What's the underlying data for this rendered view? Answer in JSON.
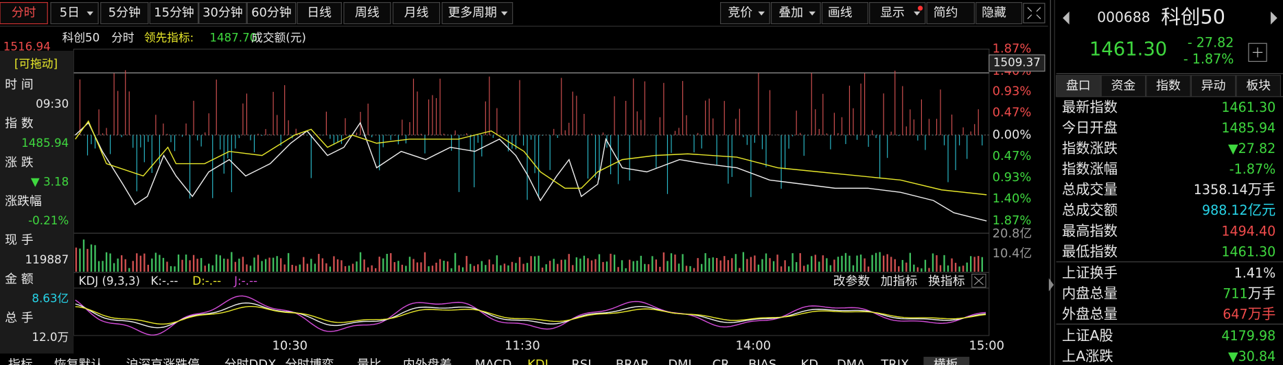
{
  "toolbar": {
    "periods": [
      "分时",
      "5日",
      "5分钟",
      "15分钟",
      "30分钟",
      "60分钟",
      "日线",
      "周线",
      "月线",
      "更多周期"
    ],
    "tools": [
      "竞价",
      "叠加",
      "画线",
      "显示",
      "简约",
      "隐藏"
    ]
  },
  "chart": {
    "name": "科创50",
    "mode": "分时",
    "lead_label": "领先指标:",
    "lead_value": "1487.70",
    "amount_label": "成交额(元)",
    "top_price": "1516.94",
    "pct_axis": [
      "1.87%",
      "1.40%",
      "0.93%",
      "0.47%",
      "0.00%",
      "0.47%",
      "0.93%",
      "1.40%",
      "1.87%"
    ],
    "cursor_value": "1509.37",
    "volume_axis": [
      "20.8亿",
      "10.4亿"
    ],
    "kdj": {
      "title": "KDJ (9,3,3)",
      "k": "K:-.--",
      "d": "D:-.--",
      "j": "J:-.--"
    },
    "indicator_buttons": [
      "改参数",
      "加指标",
      "换指标"
    ],
    "times": [
      "10:30",
      "11:30",
      "14:00",
      "15:00"
    ]
  },
  "info_panel": {
    "drag": "[可拖动]",
    "items": [
      {
        "label": "时 间",
        "value": "09:30"
      },
      {
        "label": "指 数",
        "value": "1485.94"
      },
      {
        "label": "涨 跌",
        "value": "▼ 3.18"
      },
      {
        "label": "涨跌幅",
        "value": "-0.21%"
      },
      {
        "label": "现 手",
        "value": "119887"
      },
      {
        "label": "金 额",
        "value": "8.63亿"
      },
      {
        "label": "总 手",
        "value": "12.0万"
      }
    ]
  },
  "quote": {
    "code": "000688",
    "name": "科创50",
    "price": "1461.30",
    "change": "- 27.82",
    "change_pct": "- 1.87%",
    "tabs": [
      "盘口",
      "资金",
      "指数",
      "异动",
      "板块"
    ],
    "rows": [
      {
        "label": "最新指数",
        "value": "1461.30"
      },
      {
        "label": "今日开盘",
        "value": "1485.94"
      },
      {
        "label": "指数涨跌",
        "value": "▼27.82"
      },
      {
        "label": "指数涨幅",
        "value": "-1.87%"
      },
      {
        "label": "总成交量",
        "value": "1358.14",
        "unit": "万手"
      },
      {
        "label": "总成交额",
        "value": "988.12",
        "unit": "亿元"
      },
      {
        "label": "最高指数",
        "value": "1494.40"
      },
      {
        "label": "最低指数",
        "value": "1461.30"
      },
      {
        "label": "上证换手",
        "value": "1.41%"
      },
      {
        "label": "内盘总量",
        "value": "711",
        "unit": "万手"
      },
      {
        "label": "外盘总量",
        "value": "647",
        "unit": "万手"
      },
      {
        "label": "上证A股",
        "value": "4179.98"
      },
      {
        "label": "上A涨跌",
        "value": "▼30.84"
      }
    ]
  },
  "bottom_tabs": [
    "指标",
    "恢复默认",
    "沪深京涨跌停",
    "分时DDX",
    "分时博弈",
    "量比",
    "内外盘差",
    "MACD",
    "KDJ",
    "RSI",
    "BRAR",
    "DMI",
    "CR",
    "BIAS",
    "KD",
    "DMA",
    "TRIX",
    "横板"
  ]
}
